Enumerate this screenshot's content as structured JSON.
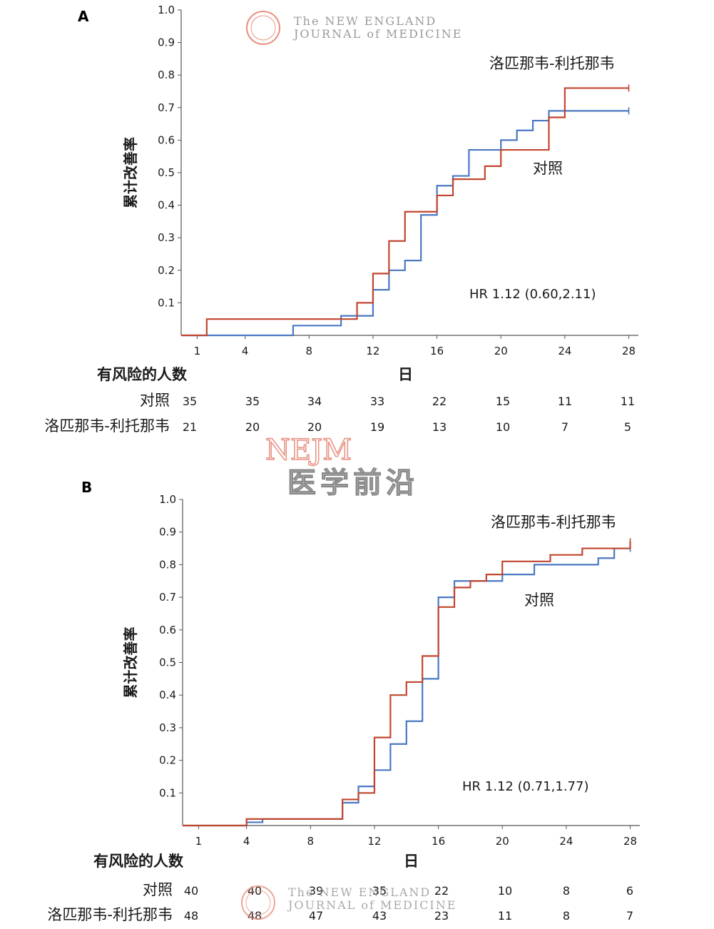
{
  "watermark": {
    "journal_line1": "The NEW ENGLAND",
    "journal_line2": "JOURNAL of MEDICINE",
    "nejm": "NEJM",
    "brand": "医学前沿"
  },
  "colors": {
    "control": "#4a78c2",
    "treatment": "#c2462f",
    "axis": "#555555",
    "watermark_red": "#e89080",
    "watermark_gray": "#8a8a8a"
  },
  "chart_data": [
    {
      "panel": "A",
      "type": "line",
      "step": true,
      "ylabel": "累计改善率",
      "xlabel": "日",
      "xticks": [
        1,
        4,
        8,
        12,
        16,
        20,
        24,
        28
      ],
      "yticks": [
        0.1,
        0.2,
        0.3,
        0.4,
        0.5,
        0.6,
        0.7,
        0.8,
        0.9,
        1.0
      ],
      "xlim": [
        0,
        28.6
      ],
      "ylim": [
        0,
        1.0
      ],
      "hr_text": "HR 1.12 (0.60,2.11)",
      "series": [
        {
          "name": "对照",
          "key": "control",
          "points": [
            [
              0,
              0
            ],
            [
              7,
              0.03
            ],
            [
              10,
              0.06
            ],
            [
              12,
              0.14
            ],
            [
              13,
              0.2
            ],
            [
              14,
              0.23
            ],
            [
              15,
              0.37
            ],
            [
              16,
              0.46
            ],
            [
              17,
              0.49
            ],
            [
              18,
              0.57
            ],
            [
              20,
              0.6
            ],
            [
              21,
              0.63
            ],
            [
              22,
              0.66
            ],
            [
              23,
              0.69
            ],
            [
              28,
              0.69
            ]
          ]
        },
        {
          "name": "洛匹那韦-利托那韦",
          "key": "treatment",
          "points": [
            [
              0,
              0
            ],
            [
              1.6,
              0.05
            ],
            [
              11,
              0.1
            ],
            [
              12,
              0.19
            ],
            [
              13,
              0.29
            ],
            [
              14,
              0.38
            ],
            [
              16,
              0.43
            ],
            [
              17,
              0.48
            ],
            [
              19,
              0.52
            ],
            [
              20,
              0.57
            ],
            [
              23,
              0.67
            ],
            [
              24,
              0.76
            ],
            [
              28,
              0.76
            ]
          ]
        }
      ],
      "risk_table": {
        "title": "有风险的人数",
        "rows": [
          {
            "label": "对照",
            "values": [
              35,
              35,
              34,
              33,
              22,
              15,
              11,
              11
            ]
          },
          {
            "label": "洛匹那韦-利托那韦",
            "values": [
              21,
              20,
              20,
              19,
              13,
              10,
              7,
              5
            ]
          }
        ]
      }
    },
    {
      "panel": "B",
      "type": "line",
      "step": true,
      "ylabel": "累计改善率",
      "xlabel": "日",
      "xticks": [
        1,
        4,
        8,
        12,
        16,
        20,
        24,
        28
      ],
      "yticks": [
        0.1,
        0.2,
        0.3,
        0.4,
        0.5,
        0.6,
        0.7,
        0.8,
        0.9,
        1.0
      ],
      "xlim": [
        0,
        28.6
      ],
      "ylim": [
        0,
        1.0
      ],
      "hr_text": "HR 1.12 (0.71,1.77)",
      "series": [
        {
          "name": "对照",
          "key": "control",
          "points": [
            [
              0,
              0
            ],
            [
              4,
              0.01
            ],
            [
              5,
              0.02
            ],
            [
              10,
              0.07
            ],
            [
              11,
              0.12
            ],
            [
              12,
              0.17
            ],
            [
              13,
              0.25
            ],
            [
              14,
              0.32
            ],
            [
              15,
              0.45
            ],
            [
              16,
              0.7
            ],
            [
              17,
              0.75
            ],
            [
              20,
              0.77
            ],
            [
              22,
              0.8
            ],
            [
              26,
              0.82
            ],
            [
              27,
              0.85
            ],
            [
              28,
              0.85
            ]
          ]
        },
        {
          "name": "洛匹那韦-利托那韦",
          "key": "treatment",
          "points": [
            [
              0,
              0
            ],
            [
              4,
              0.02
            ],
            [
              10,
              0.08
            ],
            [
              11,
              0.1
            ],
            [
              12,
              0.27
            ],
            [
              13,
              0.4
            ],
            [
              14,
              0.44
            ],
            [
              15,
              0.52
            ],
            [
              16,
              0.67
            ],
            [
              17,
              0.73
            ],
            [
              18,
              0.75
            ],
            [
              19,
              0.77
            ],
            [
              20,
              0.81
            ],
            [
              23,
              0.83
            ],
            [
              25,
              0.85
            ],
            [
              28,
              0.87
            ]
          ]
        }
      ],
      "risk_table": {
        "title": "有风险的人数",
        "rows": [
          {
            "label": "对照",
            "values": [
              40,
              40,
              39,
              35,
              22,
              10,
              8,
              6
            ]
          },
          {
            "label": "洛匹那韦-利托那韦",
            "values": [
              48,
              48,
              47,
              43,
              23,
              11,
              8,
              7
            ]
          }
        ]
      }
    }
  ]
}
